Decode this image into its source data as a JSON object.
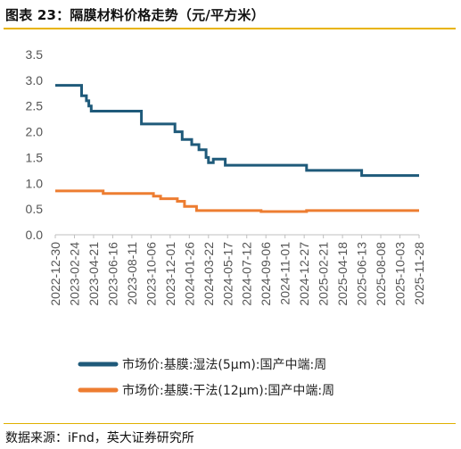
{
  "title": "图表 23：隔膜材料价格走势（元/平方米）",
  "source": "数据来源：iFnd，英大证券研究所",
  "colors": {
    "wet": "#1f5a7a",
    "dry": "#ed7d31",
    "accent": "#e8b400",
    "axis": "#bfbfbf"
  },
  "chart_data": {
    "type": "line",
    "title": "隔膜材料价格走势（元/平方米）",
    "ylim": [
      0,
      3.5
    ],
    "yticks": [
      0.0,
      0.5,
      1.0,
      1.5,
      2.0,
      2.5,
      3.0,
      3.5
    ],
    "ytick_labels": [
      "0.0",
      "0.5",
      "1.0",
      "1.5",
      "2.0",
      "2.5",
      "3.0",
      "3.5"
    ],
    "xlim": [
      "2022-12-30",
      "2025-11-28"
    ],
    "xtick_labels": [
      "2022-12-30",
      "2023-02-24",
      "2023-04-21",
      "2023-06-16",
      "2023-08-11",
      "2023-10-06",
      "2023-12-01",
      "2024-01-26",
      "2024-03-22",
      "2024-05-17",
      "2024-07-12",
      "2024-09-06",
      "2024-11-01",
      "2024-12-27",
      "2025-02-21",
      "2025-04-18",
      "2025-06-13",
      "2025-08-08",
      "2025-10-03",
      "2025-11-28"
    ],
    "grid": false,
    "legend_position": "bottom-left",
    "series": [
      {
        "name": "市场价:基膜:湿法(5μm):国产中端:周",
        "color": "#1f5a7a",
        "step": true,
        "points": [
          [
            "2022-12-30",
            2.9
          ],
          [
            "2023-03-17",
            2.7
          ],
          [
            "2023-03-31",
            2.6
          ],
          [
            "2023-04-07",
            2.5
          ],
          [
            "2023-04-14",
            2.4
          ],
          [
            "2023-09-08",
            2.15
          ],
          [
            "2023-10-06",
            2.15
          ],
          [
            "2023-10-13",
            2.15
          ],
          [
            "2023-12-15",
            2.0
          ],
          [
            "2024-01-05",
            1.85
          ],
          [
            "2024-02-02",
            1.75
          ],
          [
            "2024-02-23",
            1.65
          ],
          [
            "2024-03-15",
            1.5
          ],
          [
            "2024-03-22",
            1.4
          ],
          [
            "2024-04-05",
            1.47
          ],
          [
            "2024-05-10",
            1.35
          ],
          [
            "2025-01-03",
            1.25
          ],
          [
            "2025-06-13",
            1.15
          ],
          [
            "2025-11-28",
            1.15
          ]
        ]
      },
      {
        "name": "市场价:基膜:干法(12μm):国产中端:周",
        "color": "#ed7d31",
        "step": true,
        "points": [
          [
            "2022-12-30",
            0.85
          ],
          [
            "2023-05-19",
            0.8
          ],
          [
            "2023-10-13",
            0.75
          ],
          [
            "2023-11-03",
            0.7
          ],
          [
            "2023-12-22",
            0.65
          ],
          [
            "2024-01-12",
            0.55
          ],
          [
            "2024-02-16",
            0.47
          ],
          [
            "2024-08-23",
            0.45
          ],
          [
            "2025-01-03",
            0.47
          ],
          [
            "2025-11-28",
            0.47
          ]
        ]
      }
    ]
  }
}
